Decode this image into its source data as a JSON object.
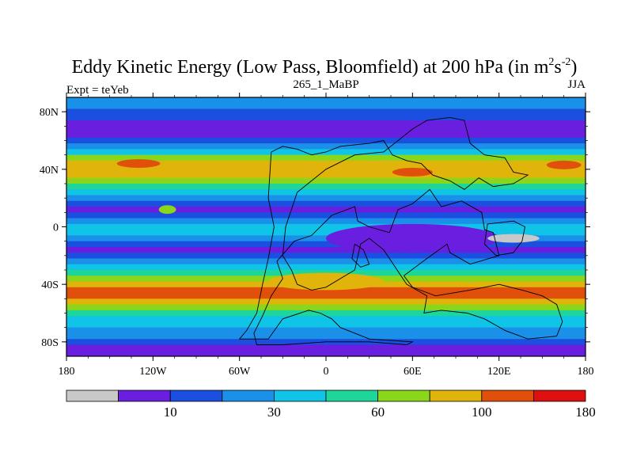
{
  "chart_data": {
    "type": "heatmap",
    "title": "Eddy Kinetic Energy (Low Pass, Bloomfield) at 200 hPa (in m",
    "title_unit_parts": [
      "2",
      "s",
      "-2",
      ")"
    ],
    "subtitle_left": "Expt = teYeb",
    "subtitle_center": "265_1_MaBP",
    "subtitle_right": "JJA",
    "x_range": [
      -180,
      180
    ],
    "y_range": [
      -90,
      90
    ],
    "x_ticks": [
      {
        "value": -180,
        "label": "180"
      },
      {
        "value": -120,
        "label": "120W"
      },
      {
        "value": -60,
        "label": "60W"
      },
      {
        "value": 0,
        "label": "0"
      },
      {
        "value": 60,
        "label": "60E"
      },
      {
        "value": 120,
        "label": "120E"
      },
      {
        "value": 180,
        "label": "180"
      }
    ],
    "y_ticks": [
      {
        "value": 80,
        "label": "80N"
      },
      {
        "value": 40,
        "label": "40N"
      },
      {
        "value": 0,
        "label": "0"
      },
      {
        "value": -40,
        "label": "40S"
      },
      {
        "value": -80,
        "label": "80S"
      }
    ],
    "colorbar": {
      "colors": [
        "#c8c8c8",
        "#6a1ee0",
        "#1a4fe0",
        "#1a90e8",
        "#0fc4e6",
        "#1ed69a",
        "#8ad61a",
        "#e0b40a",
        "#e0500a",
        "#e01010"
      ],
      "labels": [
        {
          "index": 1,
          "text": "10"
        },
        {
          "index": 3,
          "text": "30"
        },
        {
          "index": 5,
          "text": "60"
        },
        {
          "index": 7,
          "text": "100"
        },
        {
          "index": 9,
          "text": "180"
        }
      ]
    },
    "zonal_profile": [
      {
        "lat": 90,
        "level": 3
      },
      {
        "lat": 86,
        "level": 3
      },
      {
        "lat": 82,
        "level": 2
      },
      {
        "lat": 78,
        "level": 2
      },
      {
        "lat": 74,
        "level": 1
      },
      {
        "lat": 70,
        "level": 1
      },
      {
        "lat": 66,
        "level": 1
      },
      {
        "lat": 62,
        "level": 2
      },
      {
        "lat": 58,
        "level": 3
      },
      {
        "lat": 54,
        "level": 4
      },
      {
        "lat": 50,
        "level": 6
      },
      {
        "lat": 46,
        "level": 7
      },
      {
        "lat": 42,
        "level": 7
      },
      {
        "lat": 38,
        "level": 7
      },
      {
        "lat": 34,
        "level": 6
      },
      {
        "lat": 30,
        "level": 5
      },
      {
        "lat": 26,
        "level": 4
      },
      {
        "lat": 22,
        "level": 3
      },
      {
        "lat": 18,
        "level": 2
      },
      {
        "lat": 14,
        "level": 1
      },
      {
        "lat": 10,
        "level": 2
      },
      {
        "lat": 6,
        "level": 3
      },
      {
        "lat": 2,
        "level": 4
      },
      {
        "lat": -2,
        "level": 4
      },
      {
        "lat": -6,
        "level": 3
      },
      {
        "lat": -10,
        "level": 2
      },
      {
        "lat": -14,
        "level": 1
      },
      {
        "lat": -18,
        "level": 2
      },
      {
        "lat": -22,
        "level": 3
      },
      {
        "lat": -26,
        "level": 4
      },
      {
        "lat": -30,
        "level": 5
      },
      {
        "lat": -34,
        "level": 6
      },
      {
        "lat": -38,
        "level": 7
      },
      {
        "lat": -42,
        "level": 8
      },
      {
        "lat": -46,
        "level": 8
      },
      {
        "lat": -50,
        "level": 7
      },
      {
        "lat": -54,
        "level": 6
      },
      {
        "lat": -58,
        "level": 5
      },
      {
        "lat": -62,
        "level": 4
      },
      {
        "lat": -66,
        "level": 4
      },
      {
        "lat": -70,
        "level": 3
      },
      {
        "lat": -74,
        "level": 3
      },
      {
        "lat": -78,
        "level": 2
      },
      {
        "lat": -82,
        "level": 1
      },
      {
        "lat": -86,
        "level": 1
      },
      {
        "lat": -90,
        "level": 1
      }
    ],
    "features": [
      {
        "name": "min-patch-pacific",
        "lon": 130,
        "lat": -8,
        "dlon": 18,
        "dlat": 3,
        "level": 0
      },
      {
        "name": "max-patch-n-atlantic",
        "lon": -130,
        "lat": 44,
        "dlon": 15,
        "dlat": 3,
        "level": 8
      },
      {
        "name": "max-patch-eurasia",
        "lon": 60,
        "lat": 38,
        "dlon": 14,
        "dlat": 3,
        "level": 8
      },
      {
        "name": "max-patch-n-pacific",
        "lon": 165,
        "lat": 43,
        "dlon": 12,
        "dlat": 3,
        "level": 8
      },
      {
        "name": "high-patch-s-atlantic",
        "lon": 0,
        "lat": -38,
        "dlon": 40,
        "dlat": 6,
        "level": 7
      },
      {
        "name": "mid-patch-tropics",
        "lon": -110,
        "lat": 12,
        "dlon": 6,
        "dlat": 3,
        "level": 6
      },
      {
        "name": "low-band-tropics",
        "lon": 60,
        "lat": -8,
        "dlon": 60,
        "dlat": 10,
        "level": 1
      }
    ],
    "continent_outlines": [
      {
        "name": "africa-eurasia-outline",
        "points": [
          [
            -38,
            52
          ],
          [
            -40,
            20
          ],
          [
            -36,
            0
          ],
          [
            -40,
            -22
          ],
          [
            -44,
            -40
          ],
          [
            -48,
            -60
          ],
          [
            -55,
            -72
          ],
          [
            -60,
            -78
          ],
          [
            -40,
            -78
          ],
          [
            -30,
            -64
          ],
          [
            -12,
            -58
          ],
          [
            -4,
            -60
          ],
          [
            4,
            -64
          ],
          [
            10,
            -70
          ],
          [
            30,
            -78
          ],
          [
            60,
            -80
          ],
          [
            56,
            -82
          ],
          [
            30,
            -80
          ],
          [
            0,
            -80
          ],
          [
            -30,
            -82
          ],
          [
            -48,
            -82
          ],
          [
            -50,
            -74
          ],
          [
            -44,
            -62
          ],
          [
            -38,
            -48
          ],
          [
            -30,
            -36
          ],
          [
            -34,
            -24
          ],
          [
            -22,
            -10
          ],
          [
            -10,
            -6
          ],
          [
            4,
            8
          ],
          [
            20,
            14
          ],
          [
            22,
            4
          ],
          [
            30,
            0
          ],
          [
            44,
            -4
          ],
          [
            50,
            12
          ],
          [
            60,
            16
          ],
          [
            72,
            26
          ],
          [
            80,
            14
          ],
          [
            94,
            18
          ],
          [
            108,
            10
          ],
          [
            110,
            -2
          ],
          [
            116,
            -4
          ],
          [
            120,
            -20
          ],
          [
            100,
            -26
          ],
          [
            86,
            -18
          ],
          [
            84,
            -12
          ],
          [
            70,
            -22
          ],
          [
            54,
            -34
          ],
          [
            60,
            -42
          ],
          [
            76,
            -48
          ],
          [
            100,
            -44
          ],
          [
            120,
            -40
          ],
          [
            136,
            -44
          ],
          [
            150,
            -48
          ],
          [
            160,
            -54
          ],
          [
            164,
            -66
          ],
          [
            160,
            -76
          ],
          [
            140,
            -78
          ],
          [
            124,
            -72
          ],
          [
            110,
            -64
          ],
          [
            98,
            -60
          ],
          [
            80,
            -58
          ],
          [
            68,
            -60
          ],
          [
            70,
            -48
          ],
          [
            56,
            -40
          ],
          [
            40,
            -16
          ],
          [
            30,
            -8
          ],
          [
            24,
            -12
          ],
          [
            20,
            -30
          ],
          [
            10,
            -36
          ],
          [
            0,
            -42
          ],
          [
            -10,
            -44
          ],
          [
            -20,
            -40
          ],
          [
            -24,
            -30
          ],
          [
            -30,
            -20
          ],
          [
            -28,
            0
          ],
          [
            -20,
            24
          ],
          [
            0,
            40
          ],
          [
            20,
            50
          ],
          [
            40,
            52
          ],
          [
            60,
            68
          ],
          [
            70,
            74
          ],
          [
            86,
            76
          ],
          [
            96,
            74
          ],
          [
            100,
            58
          ],
          [
            110,
            50
          ],
          [
            124,
            48
          ],
          [
            130,
            38
          ],
          [
            140,
            36
          ],
          [
            130,
            30
          ],
          [
            116,
            28
          ],
          [
            106,
            34
          ],
          [
            96,
            26
          ],
          [
            86,
            32
          ],
          [
            74,
            36
          ],
          [
            66,
            44
          ],
          [
            56,
            46
          ],
          [
            46,
            50
          ],
          [
            40,
            60
          ],
          [
            30,
            58
          ],
          [
            10,
            56
          ],
          [
            0,
            52
          ],
          [
            -10,
            50
          ],
          [
            -20,
            54
          ],
          [
            -30,
            56
          ],
          [
            -38,
            52
          ]
        ]
      },
      {
        "name": "tropical-island-outline",
        "points": [
          [
            112,
            2
          ],
          [
            130,
            4
          ],
          [
            138,
            0
          ],
          [
            136,
            -10
          ],
          [
            130,
            -18
          ],
          [
            118,
            -20
          ],
          [
            110,
            -12
          ],
          [
            112,
            2
          ]
        ]
      },
      {
        "name": "arabia-outline",
        "points": [
          [
            20,
            -12
          ],
          [
            26,
            -16
          ],
          [
            30,
            -26
          ],
          [
            24,
            -28
          ],
          [
            18,
            -22
          ],
          [
            20,
            -12
          ]
        ]
      }
    ]
  }
}
